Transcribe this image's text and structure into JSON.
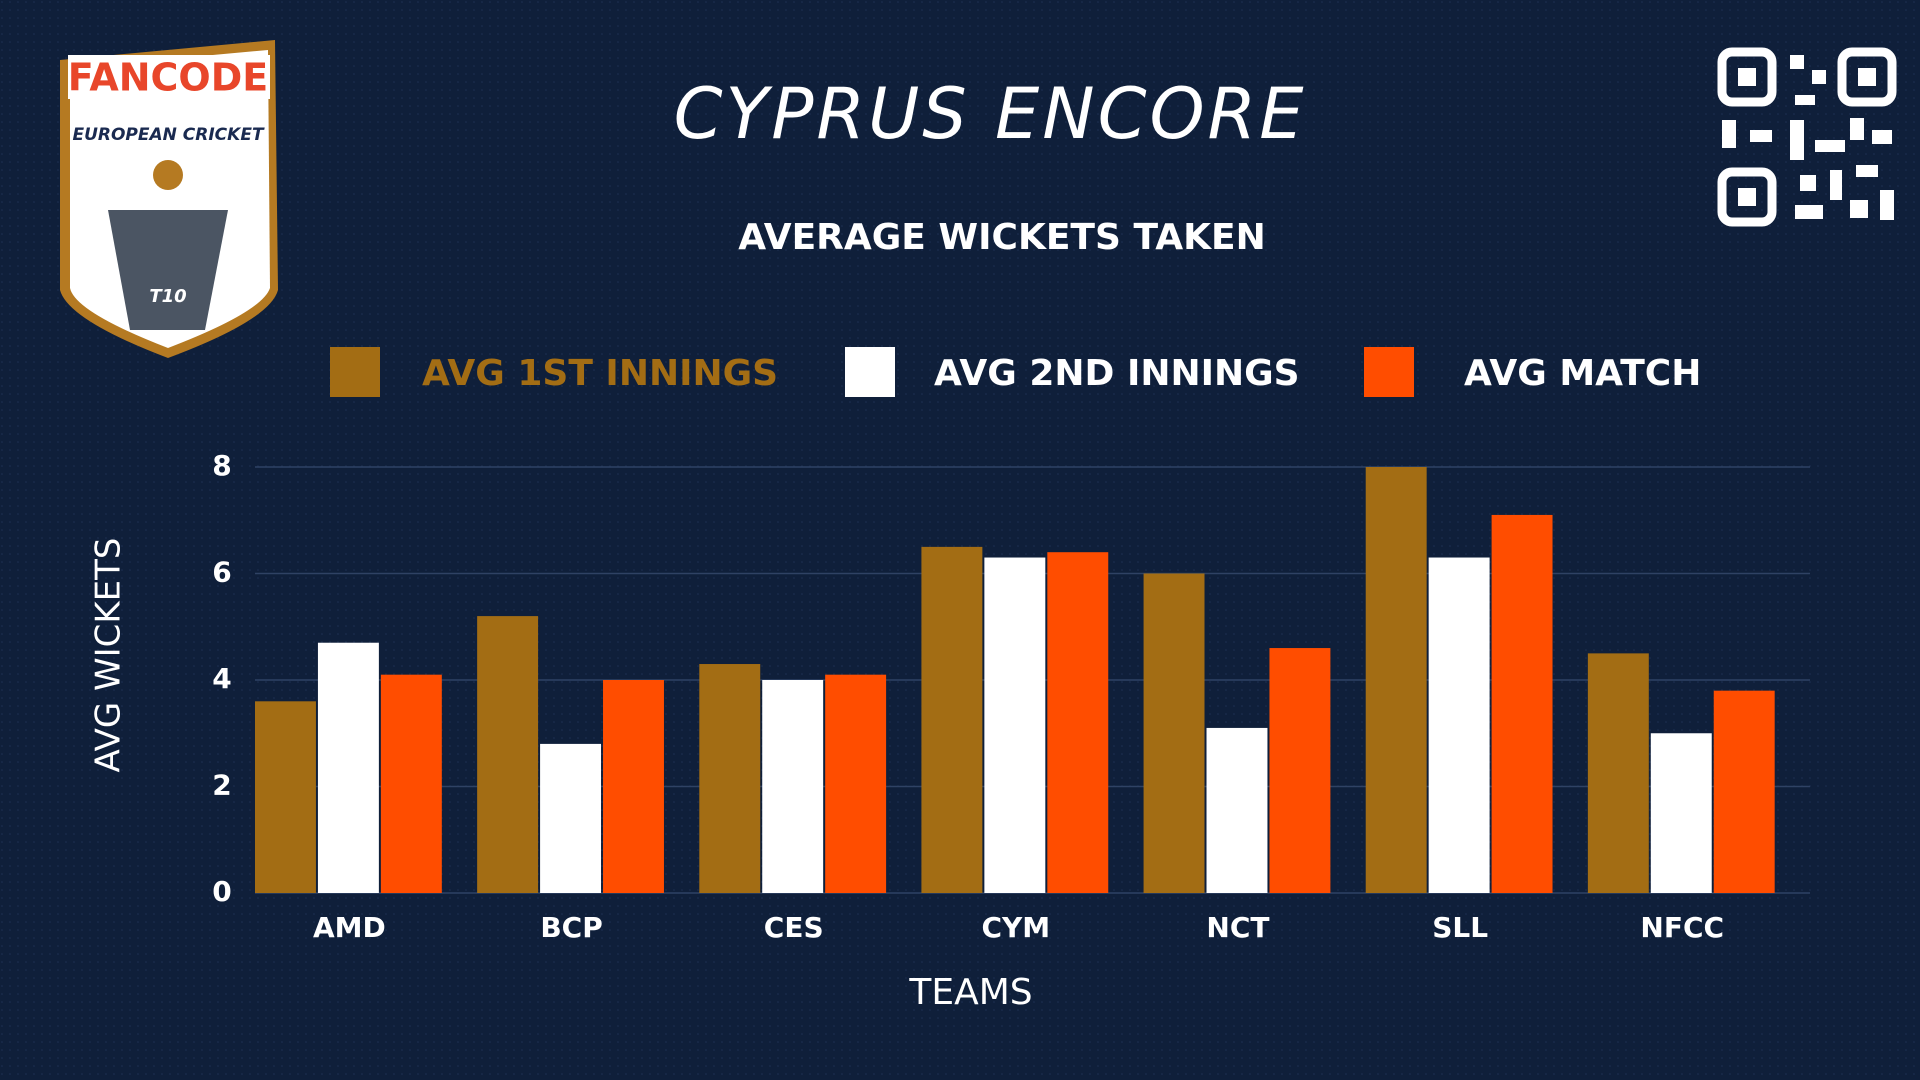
{
  "logo": {
    "brand": "FANCODE",
    "league": "EUROPEAN CRICKET",
    "format": "T10"
  },
  "chart_data": {
    "type": "bar",
    "title": "CYPRUS ENCORE",
    "subtitle": "AVERAGE WICKETS TAKEN",
    "x_label": "TEAMS",
    "y_label": "AVG WICKETS",
    "categories": [
      "AMD",
      "BCP",
      "CES",
      "CYM",
      "NCT",
      "SLL",
      "NFCC"
    ],
    "series": [
      {
        "name": "AVG 1ST INNINGS",
        "color": "#a36d14",
        "values": [
          3.6,
          5.2,
          4.3,
          6.5,
          6.0,
          8.0,
          4.5
        ]
      },
      {
        "name": "AVG 2ND INNINGS",
        "color": "#ffffff",
        "values": [
          4.7,
          2.8,
          4.0,
          6.3,
          3.1,
          6.3,
          3.0
        ]
      },
      {
        "name": "AVG MATCH",
        "color": "#ff4d00",
        "values": [
          4.1,
          4.0,
          4.1,
          6.4,
          4.6,
          7.1,
          3.8
        ]
      }
    ],
    "ylim": [
      0,
      8
    ],
    "yticks": [
      0,
      2,
      4,
      6,
      8
    ],
    "grid": true
  }
}
